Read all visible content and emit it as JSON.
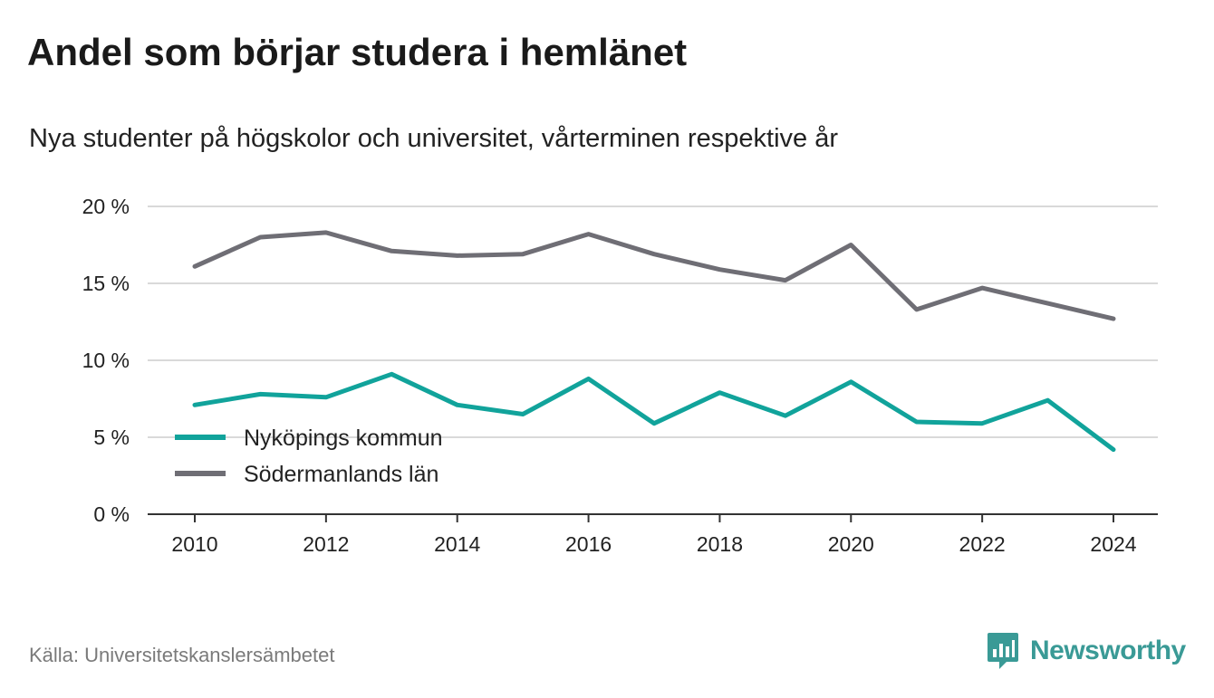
{
  "chart_data": {
    "type": "line",
    "title": "Andel som börjar studera i hemlänet",
    "subtitle": "Nya studenter på högskolor och universitet, vårterminen respektive år",
    "x": [
      2010,
      2011,
      2012,
      2013,
      2014,
      2015,
      2016,
      2017,
      2018,
      2019,
      2020,
      2021,
      2022,
      2023,
      2024
    ],
    "x_ticks": [
      "2010",
      "2012",
      "2014",
      "2016",
      "2018",
      "2020",
      "2022",
      "2024"
    ],
    "y_ticks": [
      "0 %",
      "5 %",
      "10 %",
      "15 %",
      "20 %"
    ],
    "ylim": [
      0,
      20
    ],
    "grid": true,
    "legend_position": "lower-left",
    "series": [
      {
        "name": "Nyköpings kommun",
        "color": "#11a39b",
        "values": [
          7.1,
          7.8,
          7.6,
          9.1,
          7.1,
          6.5,
          8.8,
          5.9,
          7.9,
          6.4,
          8.6,
          6.0,
          5.9,
          7.4,
          4.2
        ]
      },
      {
        "name": "Södermanlands län",
        "color": "#6f6e75",
        "values": [
          16.1,
          18.0,
          18.3,
          17.1,
          16.8,
          16.9,
          18.2,
          16.9,
          15.9,
          15.2,
          17.5,
          13.3,
          14.7,
          13.7,
          12.7
        ]
      }
    ]
  },
  "footer": {
    "source": "Källa: Universitetskanslersämbetet",
    "brand": "Newsworthy",
    "brand_color": "#3a9a96"
  }
}
